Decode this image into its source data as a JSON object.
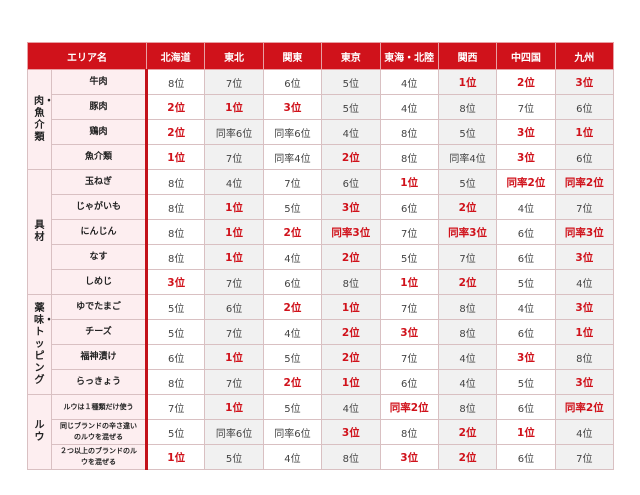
{
  "header": {
    "area_label": "エリア名",
    "regions": [
      "北海道",
      "東北",
      "関東",
      "東京",
      "東海・北陸",
      "関西",
      "中四国",
      "九州"
    ]
  },
  "colors": {
    "header_bg": "#d0121b",
    "highlight": "#d0121b",
    "item_bg": "#fdeef0",
    "alt_col": "#f1f1f1"
  },
  "groups": [
    {
      "label": "肉・魚介類",
      "items": [
        {
          "name": "牛肉",
          "ranks": [
            "8位",
            "7位",
            "6位",
            "5位",
            "4位",
            "1位",
            "2位",
            "3位"
          ]
        },
        {
          "name": "豚肉",
          "ranks": [
            "2位",
            "1位",
            "3位",
            "5位",
            "4位",
            "8位",
            "7位",
            "6位"
          ]
        },
        {
          "name": "鶏肉",
          "ranks": [
            "2位",
            "同率6位",
            "同率6位",
            "4位",
            "8位",
            "5位",
            "3位",
            "1位"
          ]
        },
        {
          "name": "魚介類",
          "ranks": [
            "1位",
            "7位",
            "同率4位",
            "2位",
            "8位",
            "同率4位",
            "3位",
            "6位"
          ]
        }
      ]
    },
    {
      "label": "具材",
      "items": [
        {
          "name": "玉ねぎ",
          "ranks": [
            "8位",
            "4位",
            "7位",
            "6位",
            "1位",
            "5位",
            "同率2位",
            "同率2位"
          ]
        },
        {
          "name": "じゃがいも",
          "ranks": [
            "8位",
            "1位",
            "5位",
            "3位",
            "6位",
            "2位",
            "4位",
            "7位"
          ]
        },
        {
          "name": "にんじん",
          "ranks": [
            "8位",
            "1位",
            "2位",
            "同率3位",
            "7位",
            "同率3位",
            "6位",
            "同率3位"
          ]
        },
        {
          "name": "なす",
          "ranks": [
            "8位",
            "1位",
            "4位",
            "2位",
            "5位",
            "7位",
            "6位",
            "3位"
          ]
        },
        {
          "name": "しめじ",
          "ranks": [
            "3位",
            "7位",
            "6位",
            "8位",
            "1位",
            "2位",
            "5位",
            "4位"
          ]
        }
      ]
    },
    {
      "label": "薬味・トッピング",
      "items": [
        {
          "name": "ゆでたまご",
          "ranks": [
            "5位",
            "6位",
            "2位",
            "1位",
            "7位",
            "8位",
            "4位",
            "3位"
          ]
        },
        {
          "name": "チーズ",
          "ranks": [
            "5位",
            "7位",
            "4位",
            "2位",
            "3位",
            "8位",
            "6位",
            "1位"
          ]
        },
        {
          "name": "福神漬け",
          "ranks": [
            "6位",
            "1位",
            "5位",
            "2位",
            "7位",
            "4位",
            "3位",
            "8位"
          ]
        },
        {
          "name": "らっきょう",
          "ranks": [
            "8位",
            "7位",
            "2位",
            "1位",
            "6位",
            "4位",
            "5位",
            "3位"
          ]
        }
      ]
    },
    {
      "label": "ルウ",
      "items": [
        {
          "name": "ルウは１種類だけ使う",
          "ranks": [
            "7位",
            "1位",
            "5位",
            "4位",
            "同率2位",
            "8位",
            "6位",
            "同率2位"
          ]
        },
        {
          "name": "同じブランドの辛さ違いのルウを混ぜる",
          "ranks": [
            "5位",
            "同率6位",
            "同率6位",
            "3位",
            "8位",
            "2位",
            "1位",
            "4位"
          ]
        },
        {
          "name": "２つ以上のブランドのルウを混ぜる",
          "ranks": [
            "1位",
            "5位",
            "4位",
            "8位",
            "3位",
            "2位",
            "6位",
            "7位"
          ]
        }
      ]
    }
  ]
}
